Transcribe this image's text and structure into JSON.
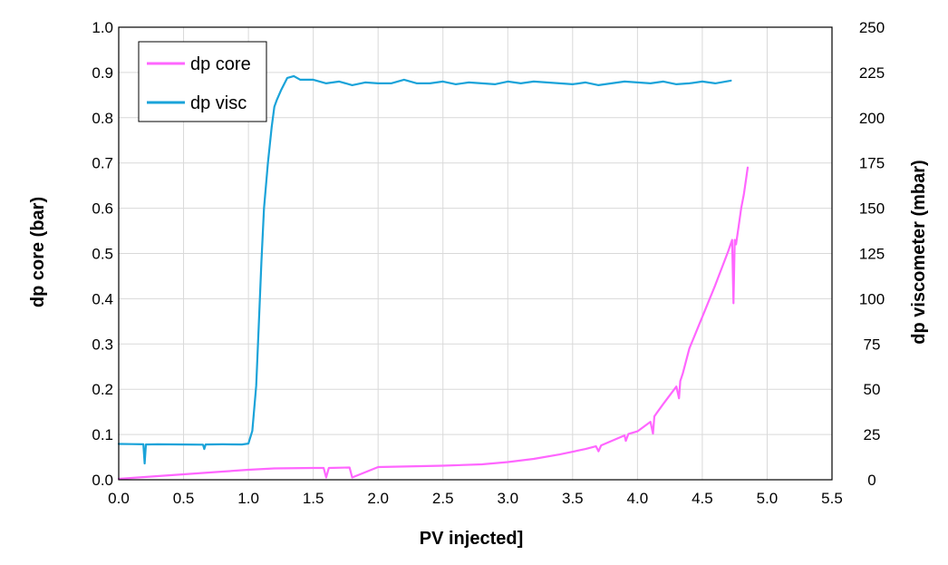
{
  "chart_data": {
    "type": "line",
    "xlabel": "PV injected]",
    "ylabel_left": "dp core (bar)",
    "ylabel_right": "dp viscometer (mbar)",
    "xlim": [
      0,
      5.5
    ],
    "ylim_left": [
      0,
      1.0
    ],
    "ylim_right": [
      0,
      250
    ],
    "x_ticks": [
      "0.0",
      "0.5",
      "1.0",
      "1.5",
      "2.0",
      "2.5",
      "3.0",
      "3.5",
      "4.0",
      "4.5",
      "5.0",
      "5.5"
    ],
    "y_ticks_left": [
      "0.0",
      "0.1",
      "0.2",
      "0.3",
      "0.4",
      "0.5",
      "0.6",
      "0.7",
      "0.8",
      "0.9",
      "1.0"
    ],
    "y_ticks_right": [
      "0",
      "25",
      "50",
      "75",
      "100",
      "125",
      "150",
      "175",
      "200",
      "225",
      "250"
    ],
    "grid": true,
    "legend_position": "top-left",
    "series": [
      {
        "name": "dp core",
        "axis": "left",
        "color": "#ff66ff",
        "x": [
          0.0,
          0.2,
          0.5,
          0.8,
          1.0,
          1.2,
          1.5,
          1.58,
          1.6,
          1.62,
          1.78,
          1.8,
          2.0,
          2.5,
          2.8,
          3.0,
          3.2,
          3.4,
          3.6,
          3.68,
          3.7,
          3.72,
          3.9,
          3.91,
          3.93,
          4.0,
          4.1,
          4.12,
          4.13,
          4.15,
          4.2,
          4.3,
          4.32,
          4.33,
          4.35,
          4.4,
          4.5,
          4.6,
          4.7,
          4.73,
          4.74,
          4.75,
          4.76,
          4.78,
          4.8,
          4.82,
          4.84,
          4.85
        ],
        "y": [
          0.002,
          0.006,
          0.012,
          0.018,
          0.022,
          0.025,
          0.026,
          0.026,
          0.005,
          0.026,
          0.027,
          0.005,
          0.028,
          0.031,
          0.034,
          0.039,
          0.046,
          0.056,
          0.068,
          0.074,
          0.063,
          0.076,
          0.098,
          0.086,
          0.101,
          0.107,
          0.128,
          0.102,
          0.14,
          0.148,
          0.168,
          0.206,
          0.18,
          0.218,
          0.235,
          0.29,
          0.36,
          0.43,
          0.505,
          0.53,
          0.39,
          0.53,
          0.52,
          0.56,
          0.6,
          0.63,
          0.67,
          0.69
        ]
      },
      {
        "name": "dp visc",
        "axis": "right",
        "color": "#1aa3d9",
        "x": [
          0.0,
          0.1,
          0.19,
          0.2,
          0.21,
          0.3,
          0.5,
          0.65,
          0.66,
          0.67,
          0.8,
          0.95,
          1.0,
          1.03,
          1.06,
          1.08,
          1.1,
          1.12,
          1.15,
          1.18,
          1.2,
          1.22,
          1.25,
          1.3,
          1.35,
          1.4,
          1.5,
          1.6,
          1.7,
          1.8,
          1.9,
          2.0,
          2.1,
          2.2,
          2.3,
          2.4,
          2.5,
          2.6,
          2.7,
          2.8,
          2.9,
          3.0,
          3.1,
          3.2,
          3.3,
          3.4,
          3.5,
          3.6,
          3.7,
          3.8,
          3.9,
          4.0,
          4.1,
          4.2,
          4.3,
          4.4,
          4.5,
          4.6,
          4.72
        ],
        "y": [
          19.8,
          19.7,
          19.6,
          9.0,
          19.5,
          19.6,
          19.5,
          19.4,
          17.0,
          19.5,
          19.6,
          19.5,
          20.0,
          27.0,
          52.0,
          85.0,
          120.0,
          150.0,
          175.0,
          195.0,
          206.0,
          210.0,
          215.0,
          222.0,
          223.0,
          221.0,
          221.0,
          219.0,
          220.0,
          218.0,
          219.5,
          219.0,
          219.0,
          221.0,
          219.0,
          219.0,
          220.0,
          218.5,
          219.5,
          219.0,
          218.5,
          220.0,
          219.0,
          220.0,
          219.5,
          219.0,
          218.5,
          219.5,
          218.0,
          219.0,
          220.0,
          219.5,
          219.0,
          220.0,
          218.5,
          219.0,
          220.0,
          219.0,
          220.5
        ]
      }
    ]
  }
}
